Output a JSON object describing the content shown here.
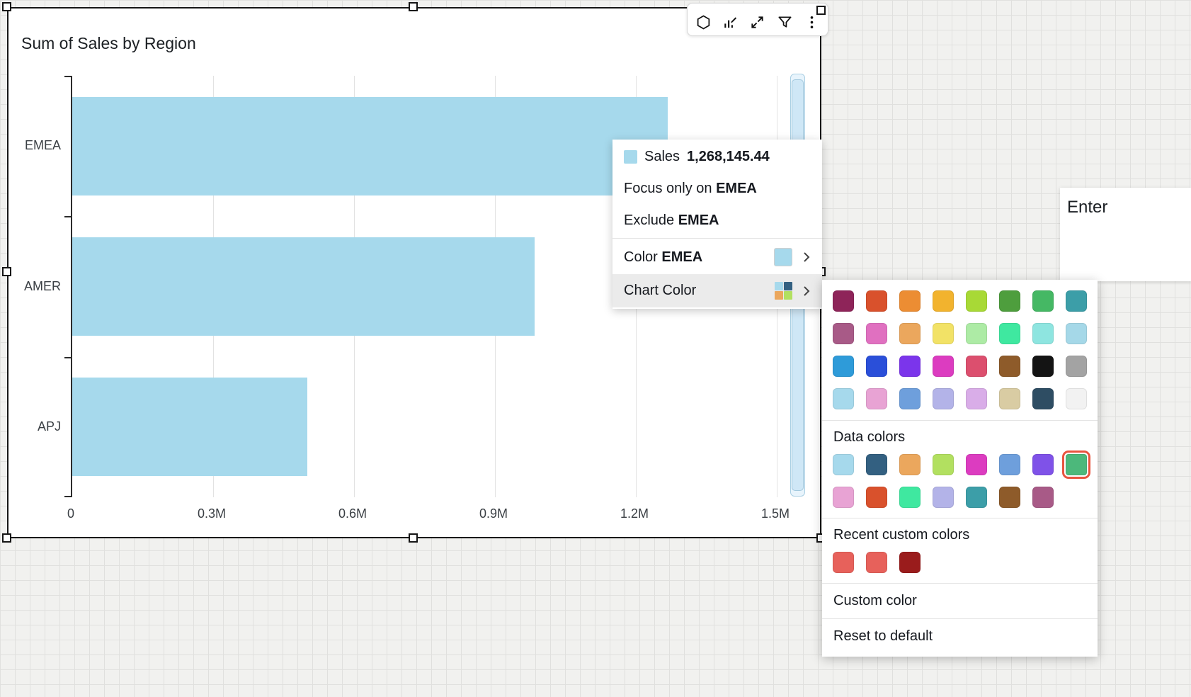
{
  "chart": {
    "title": "Sum of Sales by Region",
    "chart_data": {
      "type": "bar",
      "orientation": "horizontal",
      "title": "Sum of Sales by Region",
      "series_name": "Sales",
      "categories": [
        "EMEA",
        "AMER",
        "APJ"
      ],
      "values": [
        1268145.44,
        985000,
        500000
      ],
      "xlim": [
        0,
        1500000
      ],
      "x_ticks": [
        "0",
        "0.3M",
        "0.6M",
        "0.9M",
        "1.2M",
        "1.5M"
      ],
      "grid": true,
      "legend": "none",
      "bar_color": "#a6d9ec"
    }
  },
  "toolbar": {
    "icons": [
      "hexagon-insights",
      "forecast",
      "maximize",
      "filter",
      "kebab-menu"
    ]
  },
  "context_menu": {
    "tooltip": {
      "series": "Sales",
      "value": "1,268,145.44",
      "swatch_color": "#a6d9ec"
    },
    "focus": {
      "prefix": "Focus only on ",
      "target": "EMEA"
    },
    "exclude": {
      "prefix": "Exclude ",
      "target": "EMEA"
    },
    "color_item": {
      "prefix": "Color ",
      "target": "EMEA",
      "swatch_color": "#a6d9ec"
    },
    "chart_color_item": {
      "label": "Chart Color",
      "swatch_colors": [
        "#a6d9ec",
        "#336081",
        "#eba75d",
        "#b2e060"
      ]
    }
  },
  "color_picker": {
    "palette": [
      "#8e2459",
      "#d9512c",
      "#ec8d33",
      "#f2b32e",
      "#a8d936",
      "#4e9e3d",
      "#45b864",
      "#3c9ea8",
      "#a85a87",
      "#e070c0",
      "#eba75d",
      "#f2e266",
      "#adeba5",
      "#3fe8a0",
      "#8ee5e0",
      "#a5d8e8",
      "#2e9bd9",
      "#2a4fd9",
      "#7b35eb",
      "#dc3cc0",
      "#dc4f6e",
      "#8e5b2a",
      "#141414",
      "#a3a3a3",
      "#a6d9ec",
      "#e8a3d4",
      "#6e9fdc",
      "#b3b3e8",
      "#d9ade8",
      "#d9cca3",
      "#2e4d63",
      "#f2f2f2"
    ],
    "data_colors": {
      "label": "Data colors",
      "colors": [
        "#a6d9ec",
        "#336081",
        "#eba75d",
        "#b2e060",
        "#dc3cc0",
        "#6e9fdc",
        "#7f52e8",
        "#4cb87b",
        "#e8a3d4",
        "#d9512c",
        "#3fe8a0",
        "#b3b3e8",
        "#3c9ea8",
        "#8e5b2a",
        "#a85a87"
      ],
      "selected_index": 7,
      "selected_outline": "#e8543f"
    },
    "recent": {
      "label": "Recent custom colors",
      "colors": [
        "#e7615b",
        "#e7615b",
        "#9a1c1c"
      ]
    },
    "custom_color_label": "Custom color",
    "reset_label": "Reset to default"
  },
  "side_panel": {
    "text": "Enter"
  }
}
